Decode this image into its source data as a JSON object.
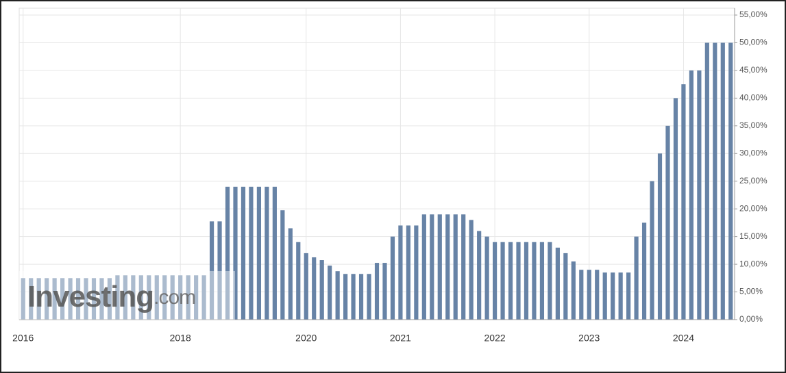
{
  "chart_data": {
    "type": "bar",
    "categories": [
      "2016",
      null,
      null,
      null,
      null,
      null,
      null,
      null,
      null,
      null,
      null,
      null,
      null,
      null,
      null,
      null,
      null,
      null,
      null,
      null,
      "2018",
      null,
      null,
      null,
      null,
      null,
      null,
      null,
      null,
      null,
      null,
      null,
      null,
      null,
      null,
      null,
      "2020",
      null,
      null,
      null,
      null,
      null,
      null,
      null,
      null,
      null,
      null,
      null,
      "2021",
      null,
      null,
      null,
      null,
      null,
      null,
      null,
      null,
      null,
      null,
      null,
      "2022",
      null,
      null,
      null,
      null,
      null,
      null,
      null,
      null,
      null,
      null,
      null,
      "2023",
      null,
      null,
      null,
      null,
      null,
      null,
      null,
      null,
      null,
      null,
      null,
      "2024",
      null,
      null,
      null,
      null,
      null,
      null
    ],
    "values": [
      7.5,
      7.5,
      7.5,
      7.5,
      7.5,
      7.5,
      7.5,
      7.5,
      7.5,
      7.5,
      7.5,
      7.5,
      8,
      8,
      8,
      8,
      8,
      8,
      8,
      8,
      8,
      8,
      8,
      8,
      17.75,
      17.75,
      24,
      24,
      24,
      24,
      24,
      24,
      24,
      19.75,
      16.5,
      14,
      12,
      11.25,
      10.75,
      9.75,
      8.75,
      8.25,
      8.25,
      8.25,
      8.25,
      10.25,
      10.25,
      15,
      17,
      17,
      17,
      19,
      19,
      19,
      19,
      19,
      19,
      18,
      16,
      15,
      14,
      14,
      14,
      14,
      14,
      14,
      14,
      14,
      13,
      12,
      10.5,
      9,
      9,
      9,
      8.5,
      8.5,
      8.5,
      8.5,
      15,
      17.5,
      25,
      30,
      35,
      40,
      42.5,
      45,
      45,
      50,
      50,
      50,
      50
    ],
    "color": "#6783a6",
    "ylim": [
      0,
      55
    ],
    "yticks": [
      {
        "value": 0,
        "label": "0,00%"
      },
      {
        "value": 5,
        "label": "5,00%"
      },
      {
        "value": 10,
        "label": "10,00%"
      },
      {
        "value": 15,
        "label": "15,00%"
      },
      {
        "value": 20,
        "label": "20,00%"
      },
      {
        "value": 25,
        "label": "25,00%"
      },
      {
        "value": 30,
        "label": "30,00%"
      },
      {
        "value": 35,
        "label": "35,00%"
      },
      {
        "value": 40,
        "label": "40,00%"
      },
      {
        "value": 45,
        "label": "45,00%"
      },
      {
        "value": 50,
        "label": "50,00%"
      },
      {
        "value": 55,
        "label": "55,00%"
      }
    ],
    "grid": true
  },
  "watermark": {
    "brand": "Investing",
    "suffix": ".com"
  }
}
